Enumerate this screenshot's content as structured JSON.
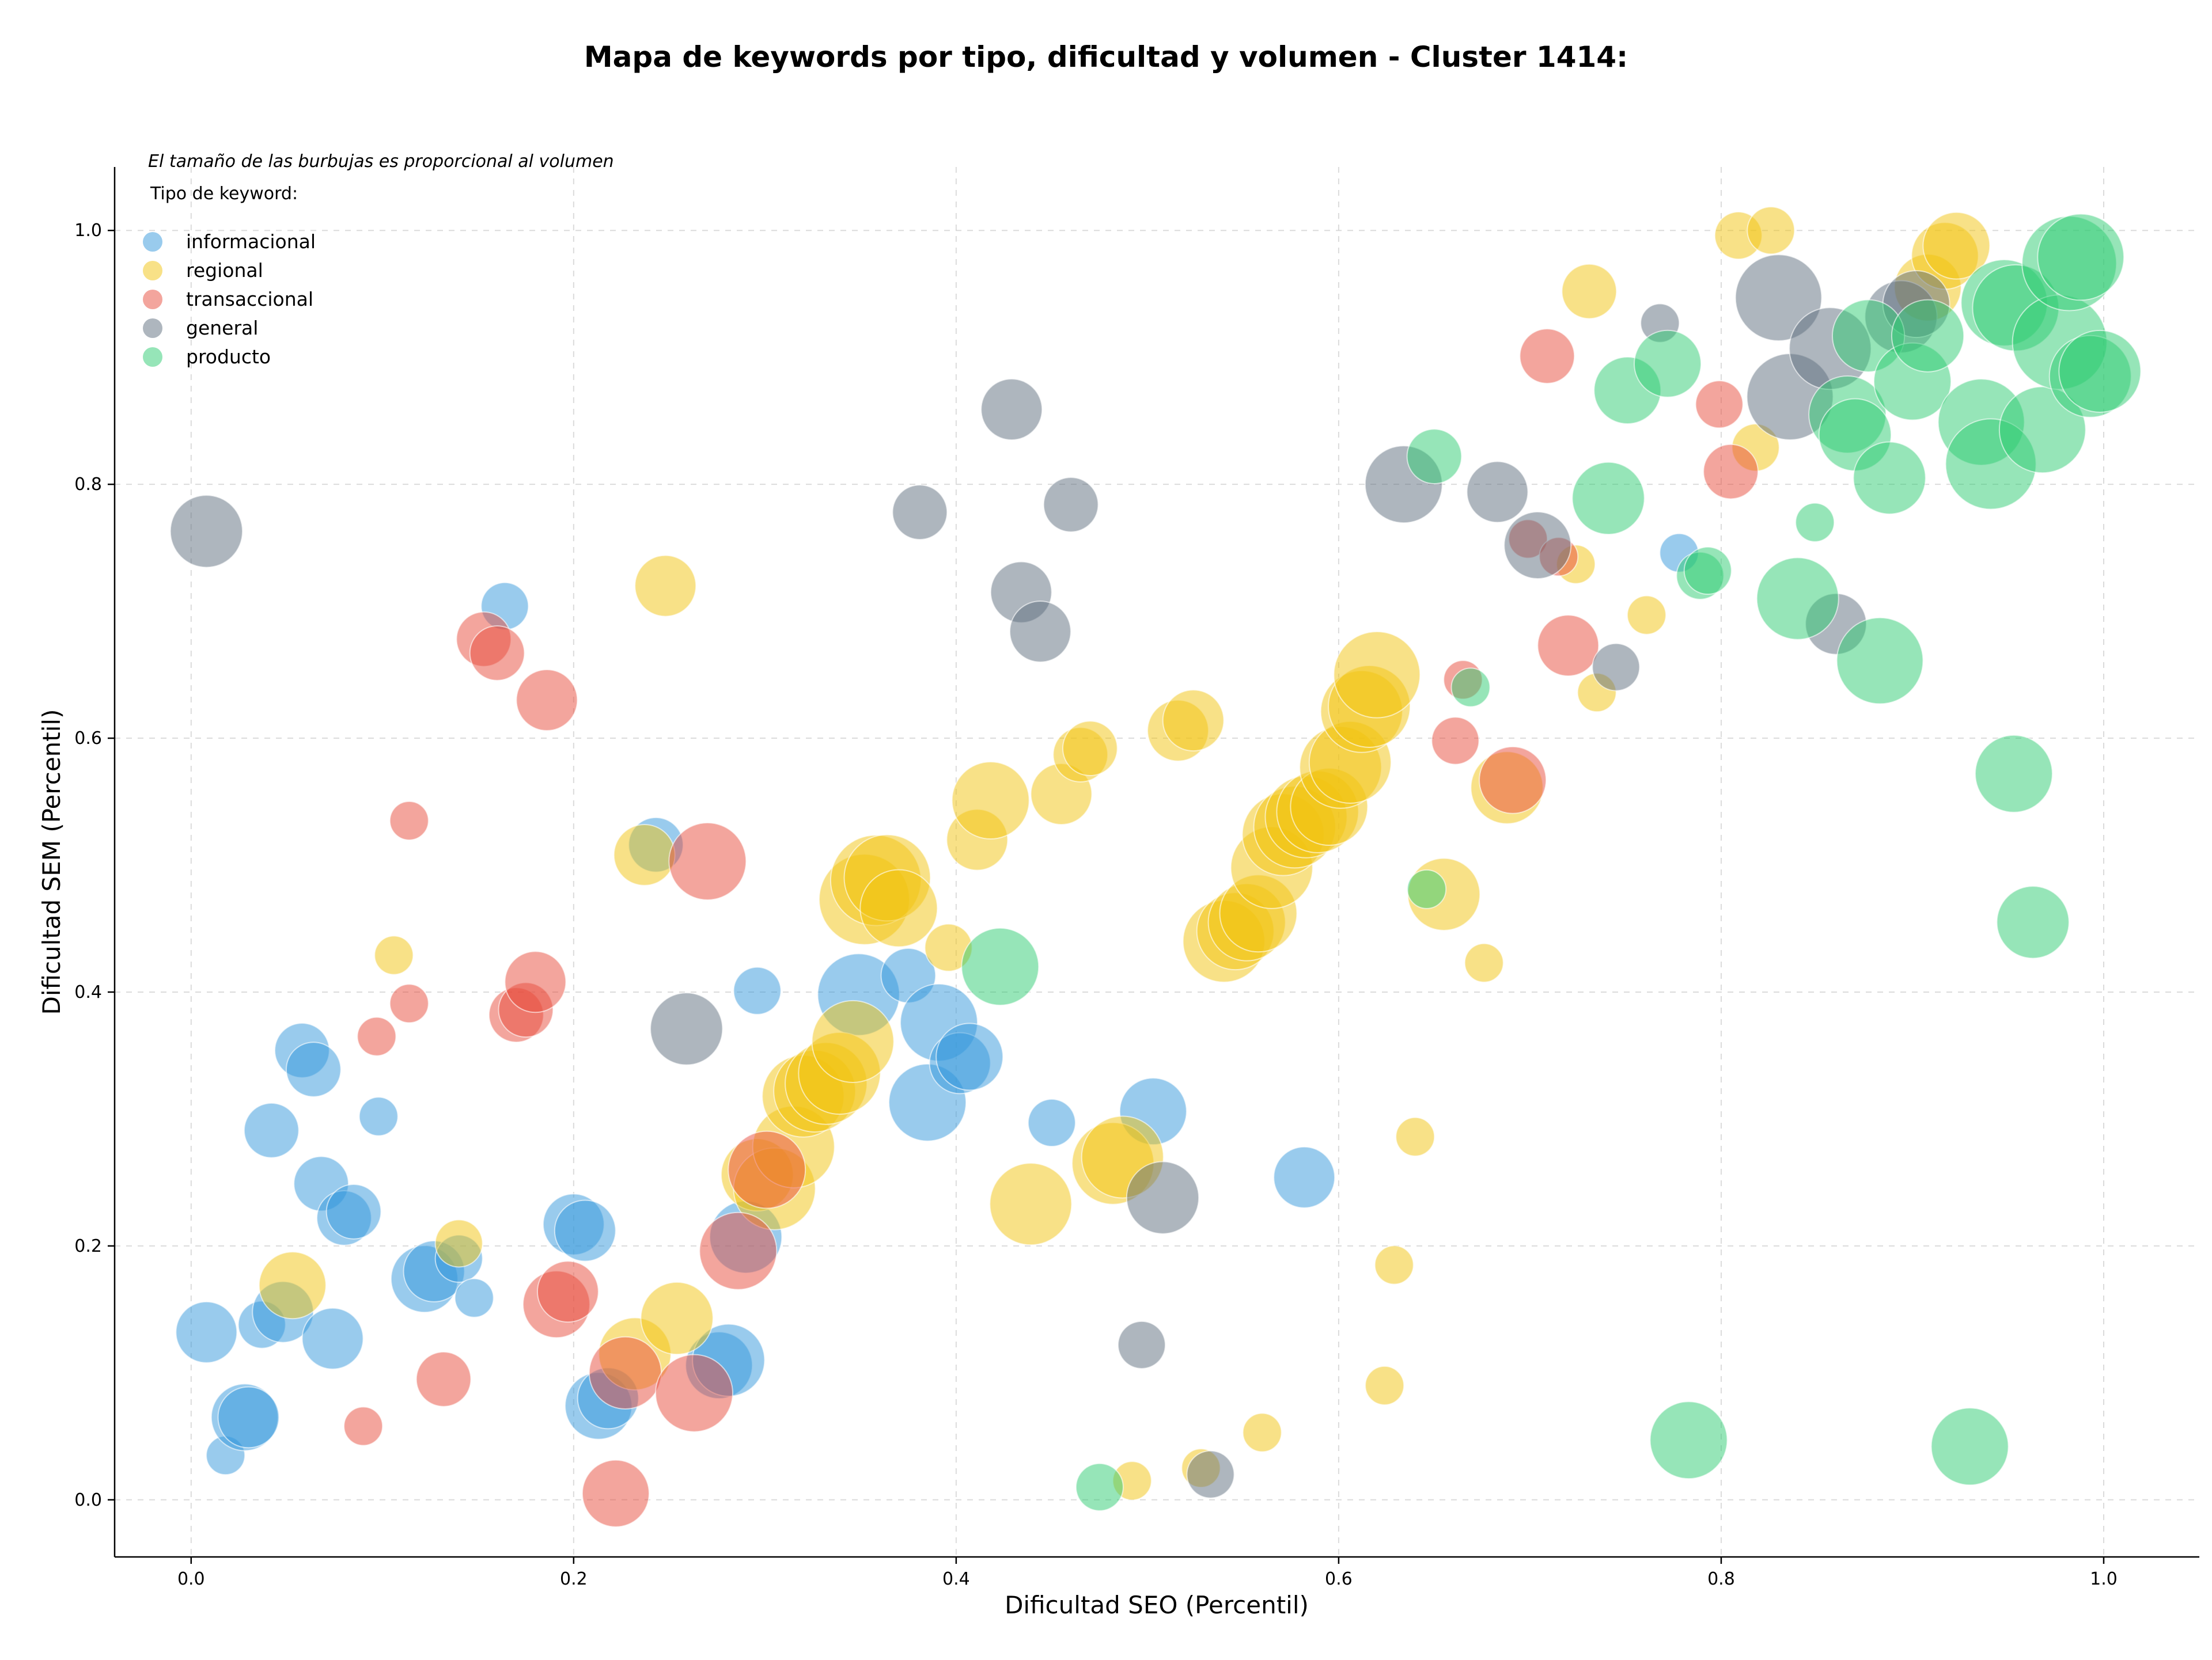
{
  "chart_data": {
    "type": "scatter",
    "title": "Mapa de keywords por tipo, dificultad y volumen - Cluster 1414:",
    "xlabel": "Dificultad SEO (Percentil)",
    "ylabel": "Dificultad SEM (Percentil)",
    "annotation": "El tamaño de las burbujas es proporcional al volumen",
    "legend_title": "Tipo de keyword:",
    "legend_position": "top-left",
    "xlim": [
      -0.04,
      1.05
    ],
    "ylim": [
      -0.045,
      1.05
    ],
    "xticks": [
      "0.0",
      "0.2",
      "0.4",
      "0.6",
      "0.8",
      "1.0"
    ],
    "yticks": [
      "0.0",
      "0.2",
      "0.4",
      "0.6",
      "0.8",
      "1.0"
    ],
    "grid": true,
    "series": [
      {
        "name": "informacional",
        "color": "#3498db",
        "points": [
          [
            0.008,
            0.132,
            5
          ],
          [
            0.018,
            0.035,
            2
          ],
          [
            0.028,
            0.065,
            6
          ],
          [
            0.03,
            0.065,
            5
          ],
          [
            0.037,
            0.138,
            3
          ],
          [
            0.042,
            0.291,
            4
          ],
          [
            0.048,
            0.148,
            5
          ],
          [
            0.058,
            0.354,
            4
          ],
          [
            0.064,
            0.339,
            4
          ],
          [
            0.068,
            0.249,
            4
          ],
          [
            0.074,
            0.127,
            5
          ],
          [
            0.08,
            0.222,
            4
          ],
          [
            0.085,
            0.227,
            4
          ],
          [
            0.098,
            0.302,
            2
          ],
          [
            0.122,
            0.174,
            6
          ],
          [
            0.127,
            0.18,
            5
          ],
          [
            0.14,
            0.19,
            3
          ],
          [
            0.148,
            0.159,
            2
          ],
          [
            0.164,
            0.704,
            3
          ],
          [
            0.2,
            0.217,
            5
          ],
          [
            0.206,
            0.212,
            5
          ],
          [
            0.213,
            0.074,
            6
          ],
          [
            0.218,
            0.08,
            5
          ],
          [
            0.243,
            0.516,
            4
          ],
          [
            0.276,
            0.106,
            6
          ],
          [
            0.281,
            0.11,
            7
          ],
          [
            0.29,
            0.207,
            7
          ],
          [
            0.296,
            0.401,
            3
          ],
          [
            0.349,
            0.398,
            9
          ],
          [
            0.375,
            0.413,
            4
          ],
          [
            0.385,
            0.313,
            8
          ],
          [
            0.391,
            0.376,
            8
          ],
          [
            0.402,
            0.344,
            5
          ],
          [
            0.407,
            0.349,
            6
          ],
          [
            0.45,
            0.297,
            3
          ],
          [
            0.503,
            0.306,
            6
          ],
          [
            0.582,
            0.254,
            5
          ],
          [
            0.778,
            0.746,
            2
          ]
        ]
      },
      {
        "name": "regional",
        "color": "#f1c40f",
        "points": [
          [
            0.053,
            0.169,
            6
          ],
          [
            0.106,
            0.429,
            2
          ],
          [
            0.14,
            0.202,
            3
          ],
          [
            0.232,
            0.115,
            7
          ],
          [
            0.237,
            0.508,
            5
          ],
          [
            0.248,
            0.72,
            5
          ],
          [
            0.254,
            0.143,
            7
          ],
          [
            0.296,
            0.256,
            7
          ],
          [
            0.305,
            0.245,
            9
          ],
          [
            0.315,
            0.278,
            9
          ],
          [
            0.32,
            0.318,
            9
          ],
          [
            0.326,
            0.322,
            9
          ],
          [
            0.332,
            0.328,
            9
          ],
          [
            0.339,
            0.336,
            9
          ],
          [
            0.346,
            0.361,
            9
          ],
          [
            0.352,
            0.473,
            11
          ],
          [
            0.358,
            0.488,
            11
          ],
          [
            0.364,
            0.49,
            10
          ],
          [
            0.37,
            0.466,
            8
          ],
          [
            0.396,
            0.435,
            3
          ],
          [
            0.411,
            0.52,
            5
          ],
          [
            0.418,
            0.551,
            8
          ],
          [
            0.439,
            0.233,
            9
          ],
          [
            0.455,
            0.556,
            5
          ],
          [
            0.465,
            0.587,
            4
          ],
          [
            0.47,
            0.592,
            4
          ],
          [
            0.482,
            0.265,
            9
          ],
          [
            0.487,
            0.27,
            9
          ],
          [
            0.492,
            0.015,
            2
          ],
          [
            0.516,
            0.606,
            5
          ],
          [
            0.524,
            0.614,
            5
          ],
          [
            0.528,
            0.025,
            2
          ],
          [
            0.54,
            0.44,
            9
          ],
          [
            0.546,
            0.448,
            8
          ],
          [
            0.552,
            0.455,
            8
          ],
          [
            0.558,
            0.462,
            8
          ],
          [
            0.565,
            0.498,
            9
          ],
          [
            0.571,
            0.524,
            9
          ],
          [
            0.577,
            0.53,
            9
          ],
          [
            0.583,
            0.538,
            9
          ],
          [
            0.589,
            0.542,
            9
          ],
          [
            0.595,
            0.546,
            8
          ],
          [
            0.601,
            0.577,
            9
          ],
          [
            0.606,
            0.581,
            9
          ],
          [
            0.612,
            0.621,
            9
          ],
          [
            0.616,
            0.625,
            9
          ],
          [
            0.62,
            0.65,
            10
          ],
          [
            0.56,
            0.053,
            2
          ],
          [
            0.624,
            0.09,
            2
          ],
          [
            0.629,
            0.185,
            2
          ],
          [
            0.64,
            0.286,
            2
          ],
          [
            0.655,
            0.477,
            7
          ],
          [
            0.676,
            0.423,
            2
          ],
          [
            0.688,
            0.561,
            7
          ],
          [
            0.724,
            0.737,
            2
          ],
          [
            0.731,
            0.952,
            4
          ],
          [
            0.735,
            0.636,
            2
          ],
          [
            0.761,
            0.697,
            2
          ],
          [
            0.818,
            0.829,
            3
          ],
          [
            0.809,
            0.996,
            3
          ],
          [
            0.826,
            1.0,
            3
          ],
          [
            0.908,
            0.955,
            6
          ],
          [
            0.917,
            0.98,
            6
          ],
          [
            0.923,
            0.988,
            6
          ]
        ]
      },
      {
        "name": "transaccional",
        "color": "#e74c3c",
        "points": [
          [
            0.09,
            0.058,
            2
          ],
          [
            0.097,
            0.365,
            2
          ],
          [
            0.114,
            0.535,
            2
          ],
          [
            0.114,
            0.391,
            2
          ],
          [
            0.132,
            0.095,
            4
          ],
          [
            0.153,
            0.678,
            4
          ],
          [
            0.16,
            0.667,
            4
          ],
          [
            0.17,
            0.382,
            4
          ],
          [
            0.175,
            0.386,
            4
          ],
          [
            0.18,
            0.408,
            5
          ],
          [
            0.186,
            0.63,
            5
          ],
          [
            0.191,
            0.154,
            6
          ],
          [
            0.197,
            0.164,
            5
          ],
          [
            0.222,
            0.005,
            6
          ],
          [
            0.227,
            0.1,
            7
          ],
          [
            0.263,
            0.084,
            8
          ],
          [
            0.27,
            0.503,
            8
          ],
          [
            0.286,
            0.196,
            8
          ],
          [
            0.301,
            0.26,
            8
          ],
          [
            0.661,
            0.598,
            3
          ],
          [
            0.665,
            0.646,
            2
          ],
          [
            0.691,
            0.567,
            6
          ],
          [
            0.699,
            0.757,
            2
          ],
          [
            0.709,
            0.901,
            4
          ],
          [
            0.715,
            0.743,
            2
          ],
          [
            0.72,
            0.673,
            5
          ],
          [
            0.799,
            0.863,
            3
          ],
          [
            0.805,
            0.81,
            4
          ]
        ]
      },
      {
        "name": "general",
        "color": "#5d6d7e",
        "points": [
          [
            0.008,
            0.763,
            7
          ],
          [
            0.259,
            0.371,
            7
          ],
          [
            0.381,
            0.778,
            4
          ],
          [
            0.429,
            0.859,
            5
          ],
          [
            0.434,
            0.715,
            5
          ],
          [
            0.444,
            0.684,
            5
          ],
          [
            0.46,
            0.784,
            4
          ],
          [
            0.497,
            0.122,
            3
          ],
          [
            0.508,
            0.238,
            7
          ],
          [
            0.533,
            0.02,
            3
          ],
          [
            0.634,
            0.8,
            8
          ],
          [
            0.683,
            0.794,
            5
          ],
          [
            0.704,
            0.752,
            6
          ],
          [
            0.745,
            0.656,
            3
          ],
          [
            0.768,
            0.927,
            2
          ],
          [
            0.83,
            0.947,
            10
          ],
          [
            0.836,
            0.869,
            10
          ],
          [
            0.857,
            0.907,
            9
          ],
          [
            0.86,
            0.69,
            5
          ],
          [
            0.894,
            0.932,
            7
          ],
          [
            0.902,
            0.942,
            6
          ]
        ]
      },
      {
        "name": "producto",
        "color": "#2ecc71",
        "points": [
          [
            0.475,
            0.01,
            3
          ],
          [
            0.423,
            0.42,
            8
          ],
          [
            0.646,
            0.481,
            2
          ],
          [
            0.669,
            0.64,
            2
          ],
          [
            0.65,
            0.822,
            4
          ],
          [
            0.741,
            0.789,
            7
          ],
          [
            0.751,
            0.874,
            6
          ],
          [
            0.772,
            0.895,
            6
          ],
          [
            0.783,
            0.047,
            8
          ],
          [
            0.789,
            0.728,
            3
          ],
          [
            0.793,
            0.732,
            3
          ],
          [
            0.84,
            0.71,
            9
          ],
          [
            0.849,
            0.77,
            2
          ],
          [
            0.866,
            0.855,
            8
          ],
          [
            0.87,
            0.839,
            7
          ],
          [
            0.877,
            0.917,
            7
          ],
          [
            0.883,
            0.661,
            10
          ],
          [
            0.888,
            0.805,
            7
          ],
          [
            0.9,
            0.881,
            8
          ],
          [
            0.908,
            0.917,
            7
          ],
          [
            0.93,
            0.042,
            8
          ],
          [
            0.936,
            0.849,
            10
          ],
          [
            0.941,
            0.816,
            11
          ],
          [
            0.948,
            0.943,
            10
          ],
          [
            0.954,
            0.939,
            10
          ],
          [
            0.953,
            0.572,
            8
          ],
          [
            0.963,
            0.455,
            7
          ],
          [
            0.968,
            0.843,
            10
          ],
          [
            0.977,
            0.912,
            12
          ],
          [
            0.982,
            0.974,
            12
          ],
          [
            0.988,
            0.979,
            10
          ],
          [
            0.993,
            0.885,
            9
          ],
          [
            0.998,
            0.889,
            9
          ]
        ]
      }
    ]
  }
}
